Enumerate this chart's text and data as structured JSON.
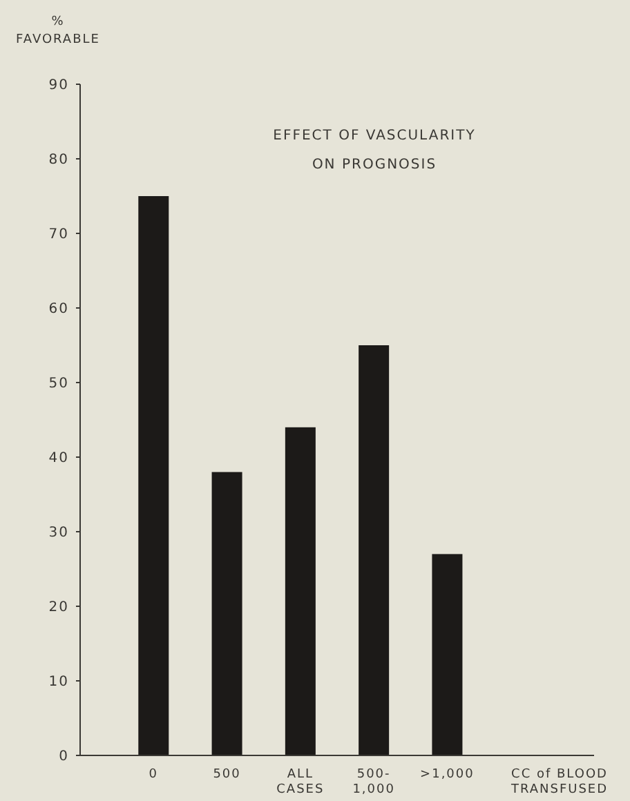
{
  "chart_data": {
    "type": "bar",
    "title": "EFFECT OF VASCULARITY\nON PROGNOSIS",
    "ylabel": "%\nFAVORABLE",
    "xlabel": "CC of BLOOD\nTRANSFUSED",
    "categories": [
      "0",
      "500",
      "ALL\nCASES",
      "500-\n1,000",
      ">1,000"
    ],
    "values": [
      75,
      38,
      44,
      55,
      27
    ],
    "color": "#1c1a18",
    "ylim": [
      0,
      90
    ],
    "yticks": [
      0,
      10,
      20,
      30,
      40,
      50,
      60,
      70,
      80,
      90
    ],
    "grid": false
  }
}
